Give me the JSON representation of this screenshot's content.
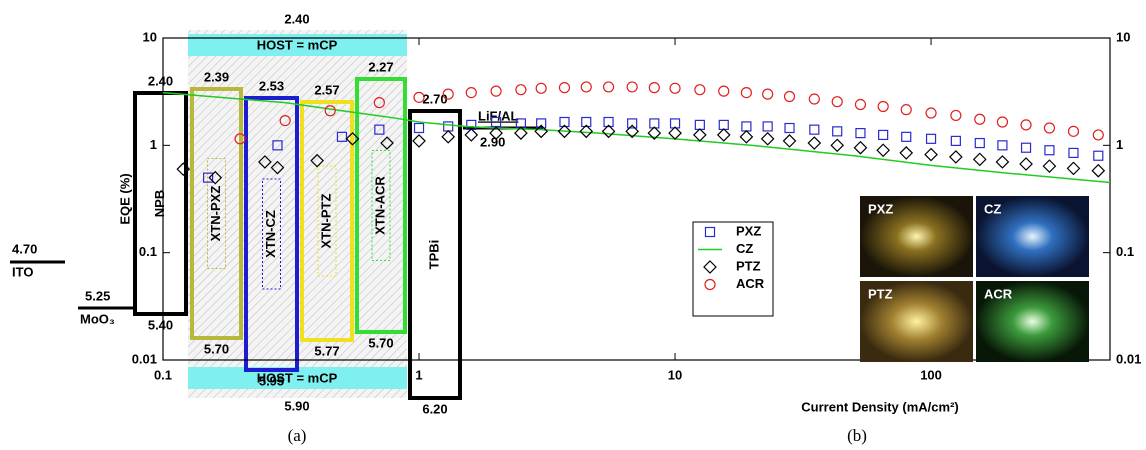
{
  "diagram": {
    "host": {
      "label": "HOST = mCP",
      "top": "2.40",
      "bottom": "5.90"
    },
    "electrodes": [
      {
        "label": "ITO",
        "level": "4.70"
      },
      {
        "label": "MoO₃",
        "level": "5.25"
      },
      {
        "label": "LiF/AL",
        "level": "2.90"
      }
    ],
    "layers": [
      {
        "label": "NPB",
        "top": "2.40",
        "bottom": "5.40"
      },
      {
        "label": "XTN-PXZ",
        "top": "2.39",
        "bottom": "5.70"
      },
      {
        "label": "XTN-CZ",
        "top": "2.53",
        "bottom": "5.95"
      },
      {
        "label": "XTN-PTZ",
        "top": "2.57",
        "bottom": "5.77"
      },
      {
        "label": "XTN-ACR",
        "top": "2.27",
        "bottom": "5.70"
      },
      {
        "label": "TPBi",
        "top": "2.70",
        "bottom": "6.20"
      }
    ],
    "caption": "(a)"
  },
  "chart_data": {
    "type": "scatter",
    "xlabel": "Current Density (mA/cm²)",
    "ylabel": "EQE (%)",
    "caption": "(b)",
    "xscale": "log",
    "yscale": "log",
    "xlim": [
      0.1,
      500
    ],
    "ylim": [
      0.01,
      10
    ],
    "xticks": [
      0.1,
      1,
      10,
      100
    ],
    "yticks": [
      0.01,
      0.1,
      1,
      10
    ],
    "insets": [
      "PXZ",
      "CZ",
      "PTZ",
      "ACR"
    ],
    "series": [
      {
        "name": "PXZ",
        "color": "#2a2ad0",
        "marker": "square",
        "x": [
          0.15,
          0.28,
          0.5,
          0.7,
          1,
          1.3,
          1.6,
          2,
          2.5,
          3,
          3.7,
          4.5,
          5.5,
          6.8,
          8.3,
          10,
          12.5,
          15.5,
          19,
          23,
          28,
          35,
          43,
          53,
          65,
          80,
          100,
          125,
          155,
          190,
          235,
          290,
          360,
          450
        ],
        "values": [
          0.5,
          1.0,
          1.2,
          1.4,
          1.45,
          1.5,
          1.55,
          1.65,
          1.6,
          1.6,
          1.65,
          1.65,
          1.65,
          1.6,
          1.6,
          1.6,
          1.55,
          1.55,
          1.5,
          1.5,
          1.45,
          1.4,
          1.35,
          1.3,
          1.25,
          1.2,
          1.15,
          1.1,
          1.05,
          1.0,
          0.95,
          0.9,
          0.85,
          0.8
        ]
      },
      {
        "name": "CZ",
        "color": "#22cc22",
        "marker": "line",
        "x": [
          0.1,
          0.2,
          0.3,
          0.5,
          0.8,
          1,
          1.5,
          2,
          3,
          5,
          10,
          20,
          50,
          100,
          200,
          500
        ],
        "values": [
          3.1,
          2.7,
          2.5,
          2.1,
          1.8,
          1.65,
          1.5,
          1.45,
          1.4,
          1.3,
          1.15,
          1.0,
          0.8,
          0.65,
          0.55,
          0.45
        ]
      },
      {
        "name": "PTZ",
        "color": "#000000",
        "marker": "diamond",
        "x": [
          0.12,
          0.16,
          0.25,
          0.28,
          0.4,
          0.55,
          0.75,
          1,
          1.3,
          1.6,
          2,
          2.5,
          3,
          3.7,
          4.5,
          5.5,
          6.8,
          8.3,
          10,
          12.5,
          15.5,
          19,
          23,
          28,
          35,
          43,
          53,
          65,
          80,
          100,
          125,
          155,
          190,
          235,
          290,
          360,
          450
        ],
        "values": [
          0.6,
          0.5,
          0.7,
          0.62,
          0.72,
          1.15,
          1.05,
          1.1,
          1.2,
          1.25,
          1.3,
          1.3,
          1.35,
          1.35,
          1.35,
          1.35,
          1.35,
          1.3,
          1.3,
          1.25,
          1.25,
          1.2,
          1.15,
          1.1,
          1.05,
          1.0,
          0.95,
          0.9,
          0.85,
          0.82,
          0.78,
          0.74,
          0.7,
          0.67,
          0.64,
          0.61,
          0.58
        ]
      },
      {
        "name": "ACR",
        "color": "#e02020",
        "marker": "circle",
        "x": [
          0.2,
          0.3,
          0.45,
          0.7,
          1,
          1.3,
          1.6,
          2,
          2.5,
          3,
          3.7,
          4.5,
          5.5,
          6.8,
          8.3,
          10,
          12.5,
          15.5,
          19,
          23,
          28,
          35,
          43,
          53,
          65,
          80,
          100,
          125,
          155,
          190,
          235,
          290,
          360,
          450
        ],
        "values": [
          1.15,
          1.7,
          2.1,
          2.5,
          2.8,
          3.0,
          3.1,
          3.2,
          3.3,
          3.4,
          3.45,
          3.5,
          3.5,
          3.5,
          3.45,
          3.4,
          3.3,
          3.2,
          3.1,
          3.0,
          2.85,
          2.7,
          2.55,
          2.4,
          2.3,
          2.15,
          2.0,
          1.9,
          1.75,
          1.65,
          1.55,
          1.45,
          1.35,
          1.25
        ]
      }
    ]
  }
}
